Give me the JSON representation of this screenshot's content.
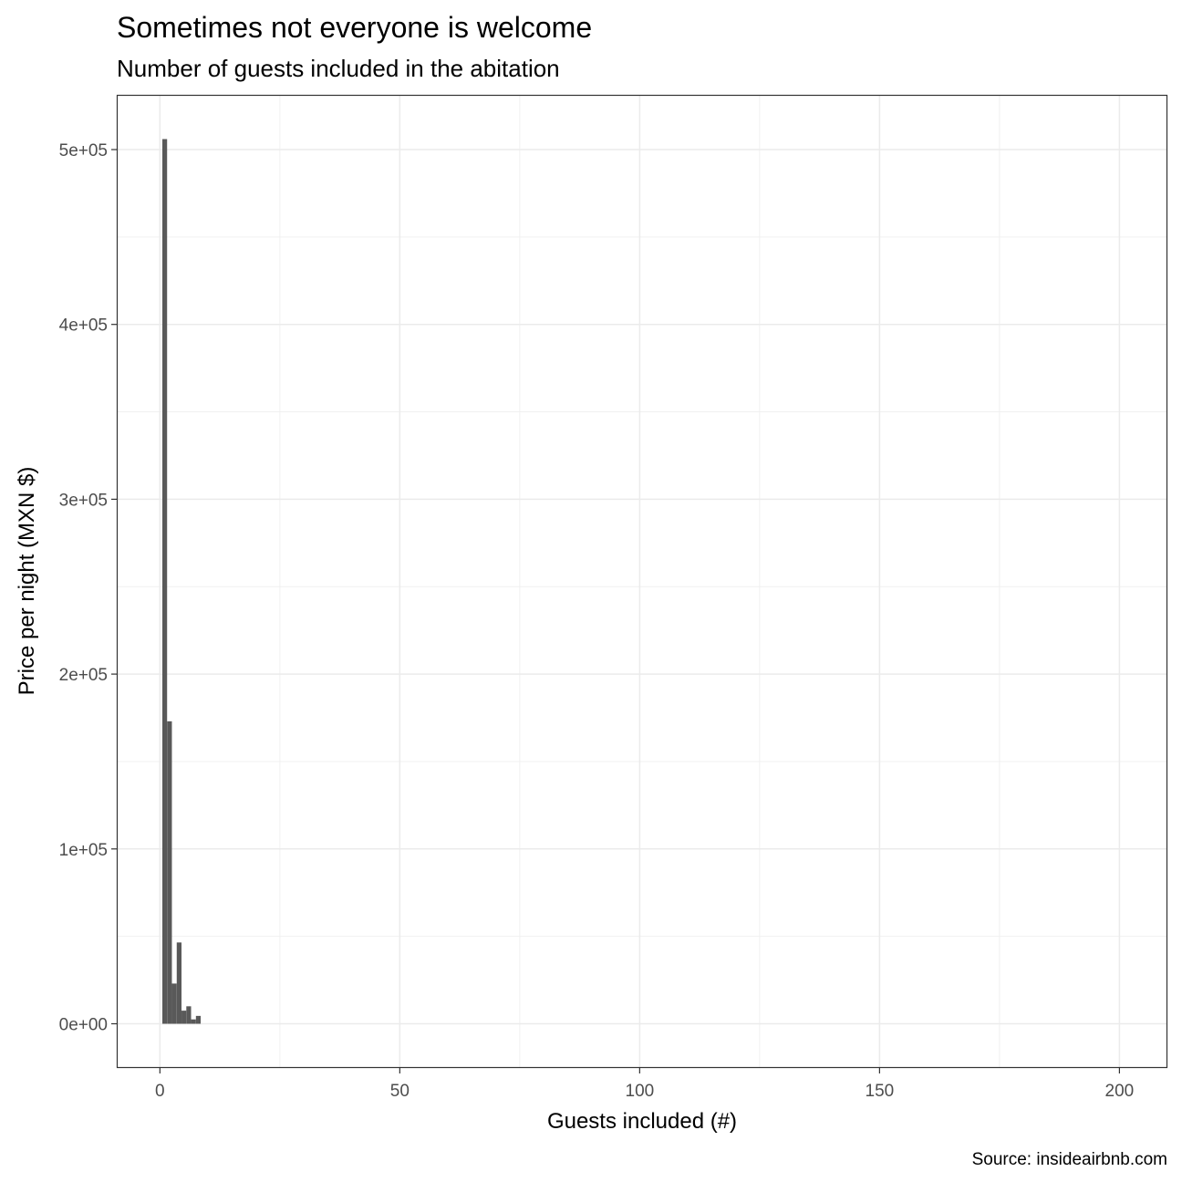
{
  "chart_data": {
    "type": "bar",
    "title": "Sometimes not everyone is welcome",
    "subtitle": "Number of guests included in the abitation",
    "xlabel": "Guests included (#)",
    "ylabel": "Price per night (MXN $)",
    "caption": "Source: insideairbnb.com",
    "xlim": [
      -9.0,
      210.0
    ],
    "ylim": [
      -25300,
      531300
    ],
    "x_ticks": [
      {
        "value": 0,
        "label": "0"
      },
      {
        "value": 50,
        "label": "50"
      },
      {
        "value": 100,
        "label": "100"
      },
      {
        "value": 150,
        "label": "150"
      },
      {
        "value": 200,
        "label": "200"
      }
    ],
    "y_ticks": [
      {
        "value": 0,
        "label": "0e+00"
      },
      {
        "value": 100000,
        "label": "1e+05"
      },
      {
        "value": 200000,
        "label": "2e+05"
      },
      {
        "value": 300000,
        "label": "3e+05"
      },
      {
        "value": 400000,
        "label": "4e+05"
      },
      {
        "value": 500000,
        "label": "5e+05"
      }
    ],
    "x_minor_breaks": [
      25,
      75,
      125,
      175
    ],
    "y_minor_breaks": [
      50000,
      150000,
      250000,
      350000,
      450000
    ],
    "grid": true,
    "bar_color": "#595959",
    "x": [
      1,
      2,
      3,
      4,
      5,
      6,
      7,
      8
    ],
    "values": [
      506000,
      173000,
      23000,
      46500,
      7500,
      10000,
      2500,
      4500
    ]
  }
}
